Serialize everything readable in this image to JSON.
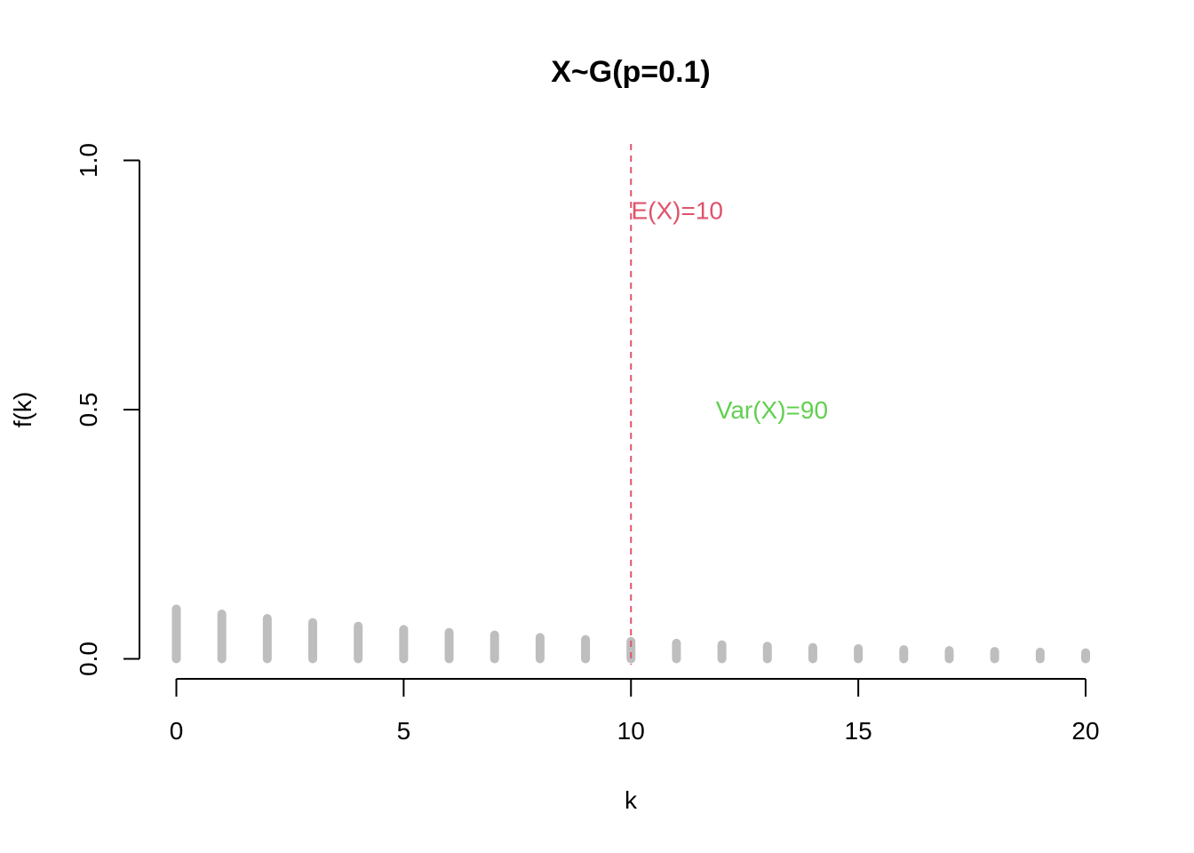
{
  "chart_data": {
    "type": "bar",
    "title": "X~G(p=0.1)",
    "xlabel": "k",
    "ylabel": "f(k)",
    "xlim": [
      0,
      20
    ],
    "ylim": [
      0,
      1
    ],
    "x_ticks": [
      0,
      5,
      10,
      15,
      20
    ],
    "y_ticks": [
      0.0,
      0.5,
      1.0
    ],
    "y_tick_labels": [
      "0.0",
      "0.5",
      "1.0"
    ],
    "x": [
      0,
      1,
      2,
      3,
      4,
      5,
      6,
      7,
      8,
      9,
      10,
      11,
      12,
      13,
      14,
      15,
      16,
      17,
      18,
      19,
      20
    ],
    "values": [
      0.1,
      0.09,
      0.081,
      0.0729,
      0.0656,
      0.059,
      0.0531,
      0.0478,
      0.043,
      0.0387,
      0.0349,
      0.0314,
      0.0282,
      0.0254,
      0.0229,
      0.0206,
      0.0185,
      0.0167,
      0.015,
      0.0135,
      0.0122
    ],
    "bar_color": "#BEBEBE",
    "grid": false,
    "annotations": [
      {
        "text": "E(X)=10",
        "x": 10,
        "y": 0.9,
        "color": "#DF536B"
      },
      {
        "text": "Var(X)=90",
        "x": 13.1,
        "y": 0.5,
        "color": "#61D04F"
      }
    ],
    "mean_line": {
      "x": 10,
      "color": "#DF536B",
      "style": "dashed"
    }
  }
}
